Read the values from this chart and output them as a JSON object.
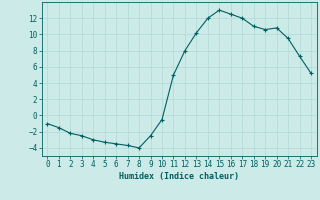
{
  "x": [
    0,
    1,
    2,
    3,
    4,
    5,
    6,
    7,
    8,
    9,
    10,
    11,
    12,
    13,
    14,
    15,
    16,
    17,
    18,
    19,
    20,
    21,
    22,
    23
  ],
  "y": [
    -1.0,
    -1.5,
    -2.2,
    -2.5,
    -3.0,
    -3.3,
    -3.5,
    -3.7,
    -4.0,
    -2.5,
    -0.5,
    5.0,
    8.0,
    10.2,
    12.0,
    13.0,
    12.5,
    12.0,
    11.0,
    10.6,
    10.8,
    9.5,
    7.3,
    5.2
  ],
  "xlabel": "Humidex (Indice chaleur)",
  "line_color": "#006060",
  "marker_color": "#006060",
  "bg_color": "#cceae8",
  "grid_color": "#b0d8d4",
  "axis_color": "#006060",
  "tick_color": "#006060",
  "ylim": [
    -5,
    14
  ],
  "yticks": [
    -4,
    -2,
    0,
    2,
    4,
    6,
    8,
    10,
    12
  ],
  "xlim": [
    -0.5,
    23.5
  ],
  "xticks": [
    0,
    1,
    2,
    3,
    4,
    5,
    6,
    7,
    8,
    9,
    10,
    11,
    12,
    13,
    14,
    15,
    16,
    17,
    18,
    19,
    20,
    21,
    22,
    23
  ]
}
